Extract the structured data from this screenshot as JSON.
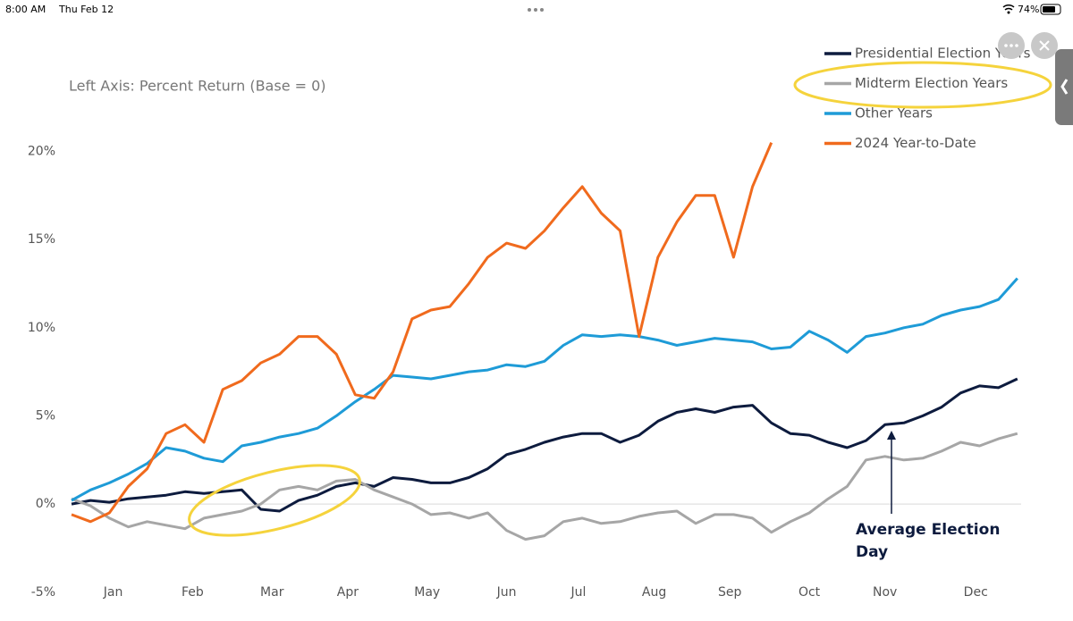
{
  "status_bar": {
    "time": "8:00 AM",
    "date": "Thu Feb 12",
    "battery": "74%"
  },
  "chart_data": {
    "type": "line",
    "subtitle": "Left Axis: Percent Return (Base = 0)",
    "x": [
      0,
      5,
      10,
      15,
      20,
      25,
      30,
      35,
      40,
      45,
      50,
      55,
      60,
      65,
      70,
      75,
      80,
      85,
      90,
      95,
      100,
      105,
      110,
      115,
      120,
      125,
      130,
      135,
      140,
      145,
      150,
      155,
      160,
      165,
      170,
      175,
      180,
      185,
      190,
      195,
      200,
      205,
      210,
      215,
      220,
      225,
      230,
      235,
      240,
      245,
      250
    ],
    "xlim": [
      0,
      251
    ],
    "xticks": [
      {
        "value": 11,
        "label": "Jan"
      },
      {
        "value": 32,
        "label": "Feb"
      },
      {
        "value": 53,
        "label": "Mar"
      },
      {
        "value": 73,
        "label": "Apr"
      },
      {
        "value": 94,
        "label": "May"
      },
      {
        "value": 115,
        "label": "Jun"
      },
      {
        "value": 134,
        "label": "Jul"
      },
      {
        "value": 154,
        "label": "Aug"
      },
      {
        "value": 174,
        "label": "Sep"
      },
      {
        "value": 195,
        "label": "Oct"
      },
      {
        "value": 215,
        "label": "Nov"
      },
      {
        "value": 239,
        "label": "Dec"
      }
    ],
    "ylim": [
      -5,
      22
    ],
    "yticks": [
      {
        "value": -5,
        "label": "-5%"
      },
      {
        "value": 0,
        "label": "0%"
      },
      {
        "value": 5,
        "label": "5%"
      },
      {
        "value": 10,
        "label": "10%"
      },
      {
        "value": 15,
        "label": "15%"
      },
      {
        "value": 20,
        "label": "20%"
      }
    ],
    "grid": false,
    "legend": "upper right",
    "series": [
      {
        "name": "Presidential Election Years",
        "color": "#0d1b3e",
        "values": [
          0.0,
          0.2,
          0.1,
          0.3,
          0.4,
          0.5,
          0.7,
          0.6,
          0.7,
          0.8,
          -0.3,
          -0.4,
          0.2,
          0.5,
          1.0,
          1.2,
          1.0,
          1.5,
          1.4,
          1.2,
          1.2,
          1.5,
          2.0,
          2.8,
          3.1,
          3.5,
          3.8,
          4.0,
          4.0,
          3.5,
          3.9,
          4.7,
          5.2,
          5.4,
          5.2,
          5.5,
          5.6,
          4.6,
          4.0,
          3.9,
          3.5,
          3.2,
          3.6,
          4.5,
          4.6,
          5.0,
          5.5,
          6.3,
          6.7,
          6.6,
          7.1
        ]
      },
      {
        "name": "Midterm Election Years",
        "color": "#a6a6a6",
        "values": [
          0.3,
          -0.1,
          -0.8,
          -1.3,
          -1.0,
          -1.2,
          -1.4,
          -0.8,
          -0.6,
          -0.4,
          0.0,
          0.8,
          1.0,
          0.8,
          1.3,
          1.4,
          0.8,
          0.4,
          0.0,
          -0.6,
          -0.5,
          -0.8,
          -0.5,
          -1.5,
          -2.0,
          -1.8,
          -1.0,
          -0.8,
          -1.1,
          -1.0,
          -0.7,
          -0.5,
          -0.4,
          -1.1,
          -0.6,
          -0.6,
          -0.8,
          -1.6,
          -1.0,
          -0.5,
          0.3,
          1.0,
          2.5,
          2.7,
          2.5,
          2.6,
          3.0,
          3.5,
          3.3,
          3.7,
          4.0
        ]
      },
      {
        "name": "Other Years",
        "color": "#1e9bd7",
        "values": [
          0.2,
          0.8,
          1.2,
          1.7,
          2.3,
          3.2,
          3.0,
          2.6,
          2.4,
          3.3,
          3.5,
          3.8,
          4.0,
          4.3,
          5.0,
          5.8,
          6.5,
          7.3,
          7.2,
          7.1,
          7.3,
          7.5,
          7.6,
          7.9,
          7.8,
          8.1,
          9.0,
          9.6,
          9.5,
          9.6,
          9.5,
          9.3,
          9.0,
          9.2,
          9.4,
          9.3,
          9.2,
          8.8,
          8.9,
          9.8,
          9.3,
          8.6,
          9.5,
          9.7,
          10.0,
          10.2,
          10.7,
          11.0,
          11.2,
          11.6,
          12.8
        ]
      },
      {
        "name": "2024 Year-to-Date",
        "color": "#f06a1d",
        "values": [
          -0.6,
          -1.0,
          -0.5,
          1.0,
          2.0,
          4.0,
          4.5,
          3.5,
          6.5,
          7.0,
          8.0,
          8.5,
          9.5,
          9.5,
          8.5,
          6.2,
          6.0,
          7.5,
          10.5,
          11.0,
          11.2,
          12.5,
          14.0,
          14.8,
          14.5,
          15.5,
          16.8,
          18.0,
          16.5,
          15.5,
          9.5,
          14.0,
          16.0,
          17.5,
          17.5,
          14.0,
          18.0,
          20.5,
          null,
          null,
          null,
          null,
          null,
          null,
          null,
          null,
          null,
          null,
          null,
          null,
          null
        ]
      }
    ],
    "annotation": "Average Election Day"
  }
}
